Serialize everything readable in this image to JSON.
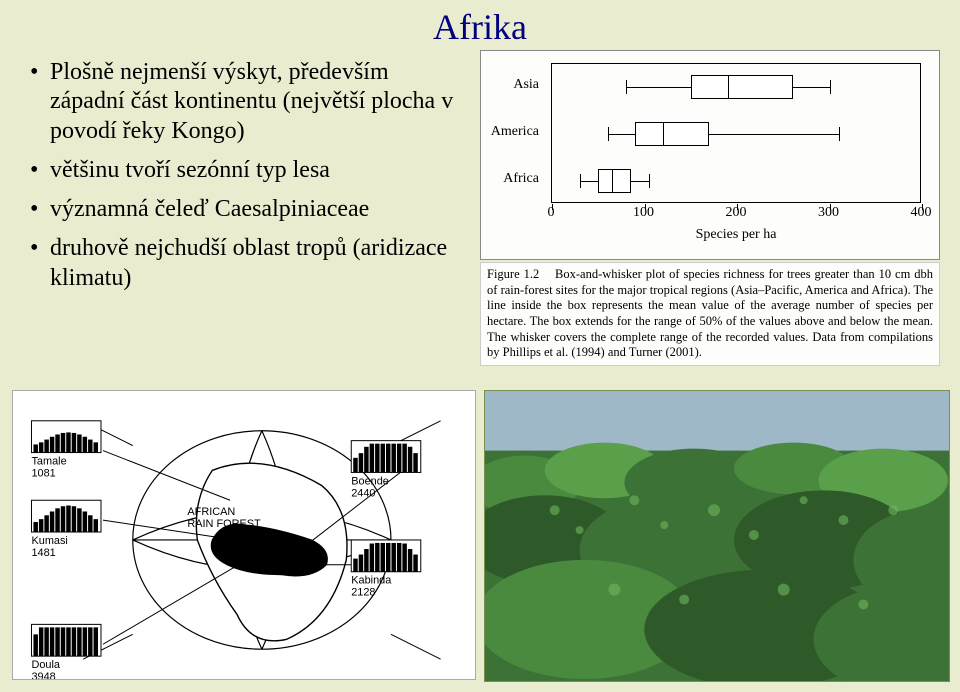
{
  "title": "Afrika",
  "bullets": [
    "Plošně nejmenší výskyt, především západní část kontinentu (největší plocha v povodí řeky Kongo)",
    "většinu tvoří sezónní typ lesa",
    "významná čeleď Caesalpiniaceae",
    "druhově nejchudší oblast tropů (aridizace klimatu)"
  ],
  "chart": {
    "type": "boxplot",
    "xlabel": "Species per ha",
    "xlim": [
      0,
      400
    ],
    "xtick_step": 100,
    "categories": [
      "Asia",
      "America",
      "Africa"
    ],
    "boxes": [
      {
        "min": 80,
        "q1": 150,
        "median": 190,
        "q3": 260,
        "max": 300
      },
      {
        "min": 60,
        "q1": 90,
        "median": 120,
        "q3": 170,
        "max": 310
      },
      {
        "min": 30,
        "q1": 50,
        "median": 65,
        "q3": 85,
        "max": 105
      }
    ],
    "box_fill": "#ffffff",
    "line_color": "#000000",
    "background_color": "#fdfdfb",
    "font_size": 14
  },
  "caption_label": "Figure 1.2",
  "caption_text": "Box-and-whisker plot of species richness for trees greater than 10 cm dbh of rain-forest sites for the major tropical regions (Asia–Pacific, America and Africa). The line inside the box represents the mean value of the average number of species per hectare. The box extends for the range of 50% of the values above and below the mean. The whisker covers the complete range of the recorded values. Data from compilations by Phillips et al. (1994) and Turner (2001).",
  "map": {
    "title": "AFRICAN RAIN FOREST",
    "stations": [
      {
        "name": "Tamale",
        "value": 1081
      },
      {
        "name": "Kumasi",
        "value": 1481
      },
      {
        "name": "Doula",
        "value": 3948
      },
      {
        "name": "Boende",
        "value": 2440
      },
      {
        "name": "Kabinda",
        "value": 2128
      }
    ],
    "background_color": "#ffffff",
    "land_fill": "#ffffff",
    "rainforest_fill": "#000000",
    "line_color": "#000000"
  },
  "photo": {
    "description": "tropical rainforest canopy",
    "sky_color": "#9fb8c8",
    "canopy_colors": [
      "#2e5a2a",
      "#3d7236",
      "#4a8a3f",
      "#5aa04a",
      "#6fb55d"
    ]
  },
  "colors": {
    "slide_bg": "#eaecd0",
    "title_color": "#000080",
    "text_color": "#000000"
  }
}
